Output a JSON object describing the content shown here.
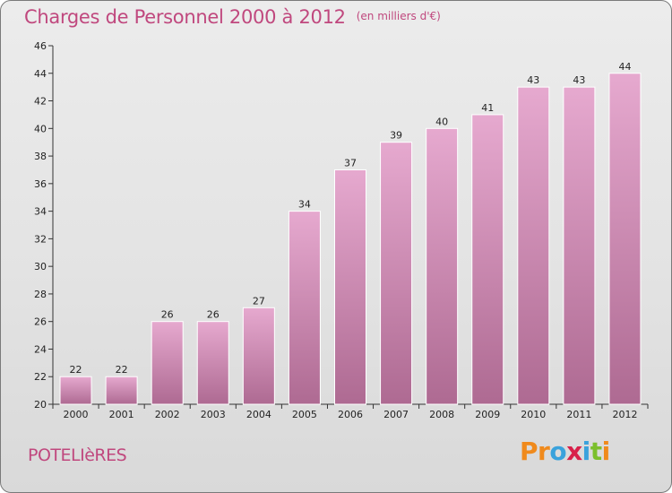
{
  "title": "Charges de Personnel 2000 à 2012",
  "subtitle": "(en milliers d'€)",
  "commune": "POTELIèRES",
  "brand": {
    "letters": [
      {
        "ch": "P",
        "color": "#f08a1c"
      },
      {
        "ch": "r",
        "color": "#f08a1c"
      },
      {
        "ch": "o",
        "color": "#3aa2dc"
      },
      {
        "ch": "x",
        "color": "#d8214a"
      },
      {
        "ch": "i",
        "color": "#3aa2dc"
      },
      {
        "ch": "t",
        "color": "#7cbf2c"
      },
      {
        "ch": "i",
        "color": "#f08a1c"
      }
    ]
  },
  "colors": {
    "bar_top": "#e6a9cf",
    "bar_bottom": "#ae6a92",
    "accent": "#c0487e"
  },
  "chart_data": {
    "type": "bar",
    "categories": [
      "2000",
      "2001",
      "2002",
      "2003",
      "2004",
      "2005",
      "2006",
      "2007",
      "2008",
      "2009",
      "2010",
      "2011",
      "2012"
    ],
    "values": [
      22,
      22,
      26,
      26,
      27,
      34,
      37,
      39,
      40,
      41,
      43,
      43,
      44
    ],
    "title": "Charges de Personnel 2000 à 2012",
    "subtitle": "(en milliers d'€)",
    "ylim": [
      20,
      46
    ],
    "yticks": [
      20,
      22,
      24,
      26,
      28,
      30,
      32,
      34,
      36,
      38,
      40,
      42,
      44,
      46
    ],
    "grid": false,
    "legend": "none"
  }
}
